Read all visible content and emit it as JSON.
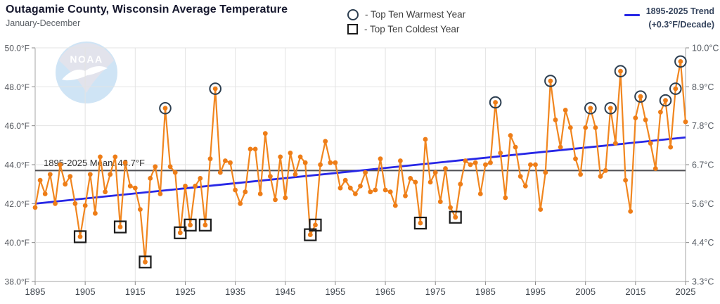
{
  "chart_data": {
    "type": "line",
    "title": "Outagamie County, Wisconsin Average Temperature",
    "subtitle": "January-December",
    "watermark": "NOAA",
    "x_start_year": 1895,
    "x_end_year": 2025,
    "ylim": [
      38,
      50
    ],
    "grid": true,
    "values": [
      41.8,
      43.2,
      42.5,
      43.5,
      42.0,
      44.0,
      43.0,
      43.4,
      42.0,
      40.3,
      41.9,
      43.5,
      41.5,
      44.4,
      42.6,
      43.5,
      44.4,
      40.8,
      44.1,
      42.9,
      42.8,
      41.7,
      39.0,
      43.3,
      43.9,
      42.5,
      46.9,
      43.9,
      43.6,
      40.5,
      42.9,
      40.9,
      42.9,
      43.3,
      40.9,
      44.3,
      47.9,
      43.6,
      44.2,
      44.1,
      42.7,
      42.0,
      42.6,
      44.8,
      44.8,
      42.5,
      45.6,
      43.4,
      42.2,
      44.4,
      42.3,
      44.6,
      43.5,
      44.4,
      44.1,
      40.4,
      40.9,
      44.0,
      45.2,
      44.1,
      44.1,
      42.8,
      43.2,
      42.8,
      42.5,
      42.9,
      43.6,
      42.6,
      42.7,
      44.3,
      42.7,
      42.6,
      41.9,
      44.2,
      42.4,
      43.3,
      43.1,
      41.0,
      45.3,
      43.1,
      43.6,
      42.1,
      43.8,
      41.8,
      41.3,
      43.0,
      44.2,
      44.0,
      44.1,
      42.5,
      44.0,
      44.1,
      47.2,
      44.6,
      42.3,
      45.5,
      44.9,
      43.4,
      42.9,
      44.0,
      44.0,
      41.7,
      43.6,
      48.3,
      46.3,
      44.9,
      46.8,
      45.9,
      44.3,
      43.5,
      45.9,
      46.9,
      45.9,
      43.4,
      43.7,
      46.9,
      45.1,
      48.8,
      43.2,
      41.6,
      46.4,
      47.5,
      46.3,
      45.1,
      43.8,
      46.7,
      47.3,
      44.9,
      47.9,
      49.3,
      46.2
    ],
    "top_ten_warmest_years": [
      1921,
      1931,
      1987,
      1998,
      2006,
      2010,
      2012,
      2016,
      2021,
      2023,
      2024
    ],
    "top_ten_coldest_years": [
      1904,
      1912,
      1917,
      1924,
      1926,
      1929,
      1950,
      1951,
      1972,
      1979
    ],
    "legend": {
      "warmest": "- Top Ten Warmest Year",
      "coldest": "- Top Ten Coldest Year",
      "trend_line1": "1895-2025 Trend",
      "trend_line2": "(+0.3°F/Decade)"
    },
    "mean": {
      "value": 43.7,
      "label": "1895-2025 Mean: 43.7°F"
    },
    "trend": {
      "start_year": 1895,
      "start_value": 42.0,
      "end_year": 2025,
      "end_value": 45.4
    },
    "y_axis_left": {
      "values": [
        50,
        48,
        46,
        44,
        42,
        40,
        38
      ],
      "labels": [
        "50.0°F",
        "48.0°F",
        "46.0°F",
        "44.0°F",
        "42.0°F",
        "40.0°F",
        "38.0°F"
      ]
    },
    "y_axis_right": {
      "labels": [
        "10.0°C",
        "8.9°C",
        "7.8°C",
        "6.7°C",
        "5.6°C",
        "4.4°C",
        "3.3°C"
      ]
    },
    "x_ticks": [
      1895,
      1905,
      1915,
      1925,
      1935,
      1945,
      1955,
      1965,
      1975,
      1985,
      1995,
      2005,
      2015,
      2025
    ],
    "colors": {
      "series": "#F1861F",
      "point": "#EE7D17",
      "trend": "#2828E6",
      "mean_line": "#525256",
      "warm_ring": "#2C3E50",
      "cold_square": "#1B1B1B",
      "grid": "#E3E3E3",
      "axis": "#A6A6A6",
      "watermark_blue": "#CFE4F5",
      "watermark_gray": "#E2E3EC"
    }
  }
}
